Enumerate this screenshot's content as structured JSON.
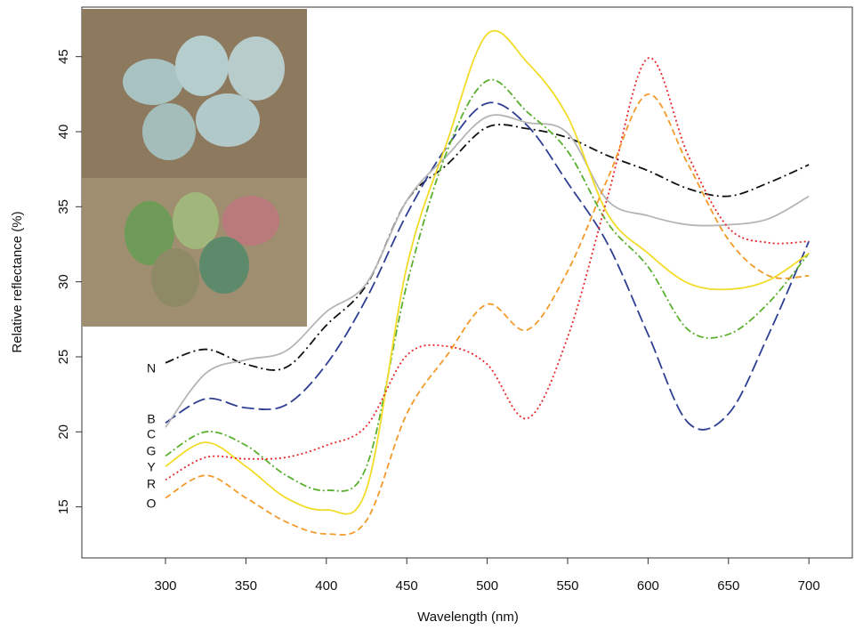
{
  "chart_data": {
    "type": "line",
    "x_label": "Wavelength (nm)",
    "y_label": "Relative reflectance (%)",
    "x": [
      300,
      325,
      350,
      375,
      400,
      425,
      450,
      475,
      500,
      525,
      550,
      575,
      600,
      625,
      650,
      675,
      700
    ],
    "xlim": [
      248,
      727
    ],
    "ylim": [
      11.6,
      48.3
    ],
    "xticks": [
      300,
      350,
      400,
      450,
      500,
      550,
      600,
      650,
      700
    ],
    "yticks": [
      15,
      20,
      25,
      30,
      35,
      40,
      45
    ],
    "grid": false,
    "series": [
      {
        "name": "N",
        "color": "#111111",
        "dash": "10 4 2 4",
        "values": [
          24.6,
          25.5,
          24.5,
          24.3,
          27.1,
          29.8,
          35.4,
          37.8,
          40.3,
          40.2,
          39.6,
          38.4,
          37.4,
          36.2,
          35.7,
          36.6,
          37.8
        ]
      },
      {
        "name": "B",
        "color": "#2e3f94",
        "dash": "14 5",
        "values": [
          20.6,
          22.2,
          21.6,
          21.8,
          24.5,
          28.9,
          34.5,
          39.0,
          41.9,
          40.4,
          36.6,
          32.5,
          26.5,
          20.6,
          21.2,
          26.5,
          32.7
        ]
      },
      {
        "name": "C",
        "color": "#b5b5b5",
        "dash": "",
        "values": [
          20.3,
          23.9,
          24.8,
          25.4,
          28.0,
          29.9,
          35.4,
          38.4,
          41.0,
          40.6,
          39.9,
          35.4,
          34.4,
          33.8,
          33.8,
          34.2,
          35.7
        ]
      },
      {
        "name": "G",
        "color": "#5ab02e",
        "dash": "8 3 2 3",
        "values": [
          18.4,
          20.0,
          19.1,
          17.1,
          16.1,
          17.7,
          29.8,
          38.7,
          43.4,
          41.3,
          38.7,
          33.9,
          31.0,
          26.8,
          26.5,
          28.6,
          31.9
        ]
      },
      {
        "name": "Y",
        "color": "#f2dc28",
        "dash": "",
        "values": [
          17.7,
          19.3,
          17.7,
          15.6,
          14.8,
          16.2,
          31.0,
          39.3,
          46.5,
          44.6,
          41.0,
          34.5,
          31.9,
          29.9,
          29.5,
          30.1,
          31.9
        ]
      },
      {
        "name": "R",
        "color": "#e8262a",
        "dash": "2 3",
        "values": [
          16.8,
          18.3,
          18.2,
          18.3,
          19.1,
          20.4,
          25.1,
          25.7,
          24.5,
          20.9,
          26.3,
          35.7,
          44.9,
          38.4,
          33.6,
          32.6,
          32.7
        ]
      },
      {
        "name": "O",
        "color": "#f39a2a",
        "dash": "7 4",
        "values": [
          15.6,
          17.1,
          15.6,
          14.0,
          13.2,
          14.1,
          21.2,
          25.1,
          28.5,
          26.8,
          30.7,
          36.9,
          42.5,
          37.8,
          32.8,
          30.4,
          30.4
        ]
      }
    ]
  }
}
